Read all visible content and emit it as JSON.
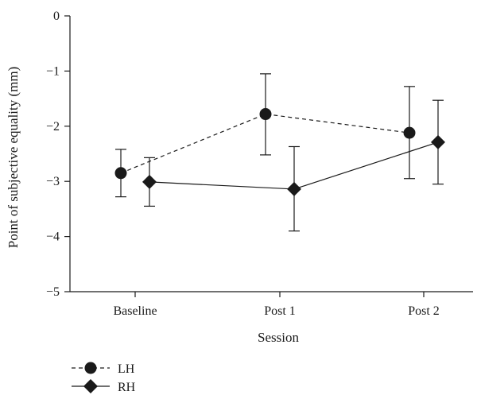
{
  "chart_data": {
    "type": "line",
    "title": "",
    "xlabel": "Session",
    "ylabel": "Point of subjective equality (mm)",
    "categories": [
      "Baseline",
      "Post 1",
      "Post 2"
    ],
    "ylim": [
      -5,
      0
    ],
    "yticks": [
      0,
      -1,
      -2,
      -3,
      -4,
      -5
    ],
    "ytick_labels": [
      "0",
      "−1",
      "−2",
      "−3",
      "−4",
      "−5"
    ],
    "grid": false,
    "legend_position": "bottom-left",
    "series": [
      {
        "name": "LH",
        "marker": "circle",
        "line_style": "dashed",
        "values": [
          -2.85,
          -1.78,
          -2.12
        ],
        "error_low": [
          -3.28,
          -2.52,
          -2.95
        ],
        "error_high": [
          -2.42,
          -1.05,
          -1.28
        ]
      },
      {
        "name": "RH",
        "marker": "diamond",
        "line_style": "solid",
        "values": [
          -3.01,
          -3.14,
          -2.29
        ],
        "error_low": [
          -3.45,
          -3.9,
          -3.05
        ],
        "error_high": [
          -2.57,
          -2.37,
          -1.53
        ]
      }
    ],
    "colors": {
      "ink": "#1a1a1a",
      "background": "#ffffff"
    }
  }
}
